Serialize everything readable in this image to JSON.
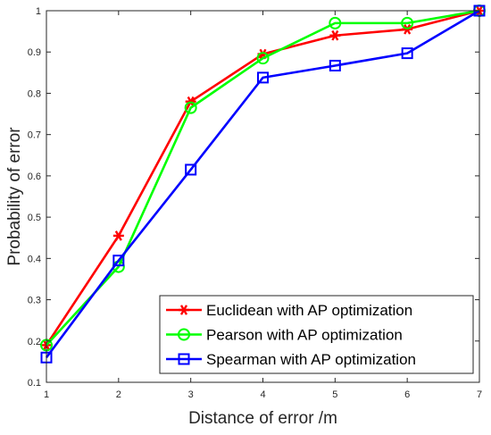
{
  "chart_data": {
    "type": "line",
    "xlabel": "Distance of error /m",
    "ylabel": "Probability of error",
    "xlim": [
      1,
      7
    ],
    "ylim": [
      0.1,
      1
    ],
    "xticks": [
      "1",
      "2",
      "3",
      "4",
      "5",
      "6",
      "7"
    ],
    "yticks": [
      "0.1",
      "0.2",
      "0.3",
      "0.4",
      "0.5",
      "0.6",
      "0.7",
      "0.8",
      "0.9",
      "1"
    ],
    "grid": false,
    "legend_position": "bottom-right",
    "x": [
      1,
      2,
      3,
      4,
      5,
      6,
      7
    ],
    "series": [
      {
        "name": "Euclidean with AP optimization",
        "color": "#ff0000",
        "marker": "asterisk",
        "values": [
          0.19,
          0.455,
          0.78,
          0.895,
          0.94,
          0.955,
          1.0
        ]
      },
      {
        "name": "Pearson with AP optimization",
        "color": "#00ff00",
        "marker": "circle",
        "values": [
          0.19,
          0.38,
          0.765,
          0.885,
          0.97,
          0.97,
          1.0
        ]
      },
      {
        "name": "Spearman with AP optimization",
        "color": "#0000ff",
        "marker": "square",
        "values": [
          0.16,
          0.395,
          0.615,
          0.838,
          0.867,
          0.897,
          1.0
        ]
      }
    ]
  }
}
